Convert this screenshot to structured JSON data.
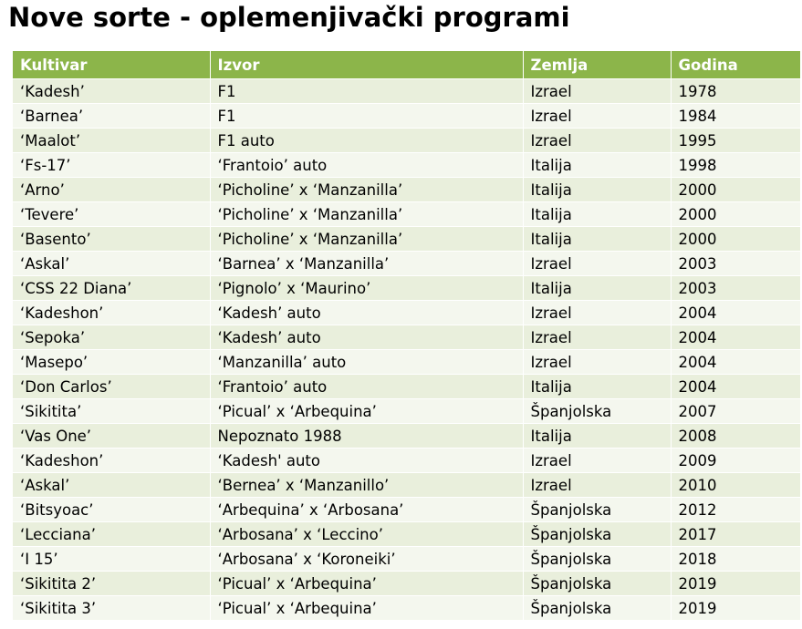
{
  "header": {
    "title": "Nove sorte - oplemenjivački programi"
  },
  "table": {
    "columns": [
      "Kultivar",
      "Izvor",
      "Zemlja",
      "Godina"
    ],
    "rows": [
      [
        "‘Kadesh’",
        "F1",
        "Izrael",
        1978
      ],
      [
        "‘Barnea’",
        "F1",
        "Izrael",
        1984
      ],
      [
        "‘Maalot’",
        "F1 auto",
        "Izrael",
        1995
      ],
      [
        "‘Fs-17’",
        "‘Frantoio’ auto",
        "Italija",
        1998
      ],
      [
        "‘Arno’",
        "‘Picholine’ x ‘Manzanilla’",
        "Italija",
        2000
      ],
      [
        "‘Tevere’",
        "‘Picholine’ x ‘Manzanilla’",
        "Italija",
        2000
      ],
      [
        "‘Basento’",
        "‘Picholine’ x ‘Manzanilla’",
        "Italija",
        2000
      ],
      [
        "‘Askal’",
        "‘Barnea’ x ‘Manzanilla’",
        "Izrael",
        2003
      ],
      [
        "‘CSS 22 Diana’",
        "‘Pignolo’ x ‘Maurino’",
        "Italija",
        2003
      ],
      [
        "‘Kadeshon’",
        "‘Kadesh’ auto",
        "Izrael",
        2004
      ],
      [
        "‘Sepoka’",
        "‘Kadesh’ auto",
        "Izrael",
        2004
      ],
      [
        "‘Masepo’",
        "‘Manzanilla’ auto",
        "Izrael",
        2004
      ],
      [
        "‘Don Carlos’",
        "‘Frantoio’ auto",
        "Italija",
        2004
      ],
      [
        "‘Sikitita’",
        "‘Picual’ x ‘Arbequina’",
        "Španjolska",
        2007
      ],
      [
        "‘Vas One’",
        "Nepoznato 1988",
        "Italija",
        2008
      ],
      [
        "‘Kadeshon’",
        "‘Kadesh' auto",
        "Izrael",
        2009
      ],
      [
        "‘Askal’",
        "‘Bernea’ x ‘Manzanillo’",
        "Izrael",
        2010
      ],
      [
        "‘Bitsyoac’",
        "‘Arbequina’ x ‘Arbosana’",
        "Španjolska",
        2012
      ],
      [
        "‘Lecciana’",
        "‘Arbosana’ x ‘Leccino’",
        "Španjolska",
        2017
      ],
      [
        "‘I 15’",
        "‘Arbosana’ x ‘Koroneiki’",
        "Španjolska",
        2018
      ],
      [
        "‘Sikitita 2’",
        "‘Picual’ x ‘Arbequina’",
        "Španjolska",
        2019
      ],
      [
        "‘Sikitita 3’",
        "‘Picual’ x ‘Arbequina’",
        "Španjolska",
        2019
      ]
    ]
  }
}
